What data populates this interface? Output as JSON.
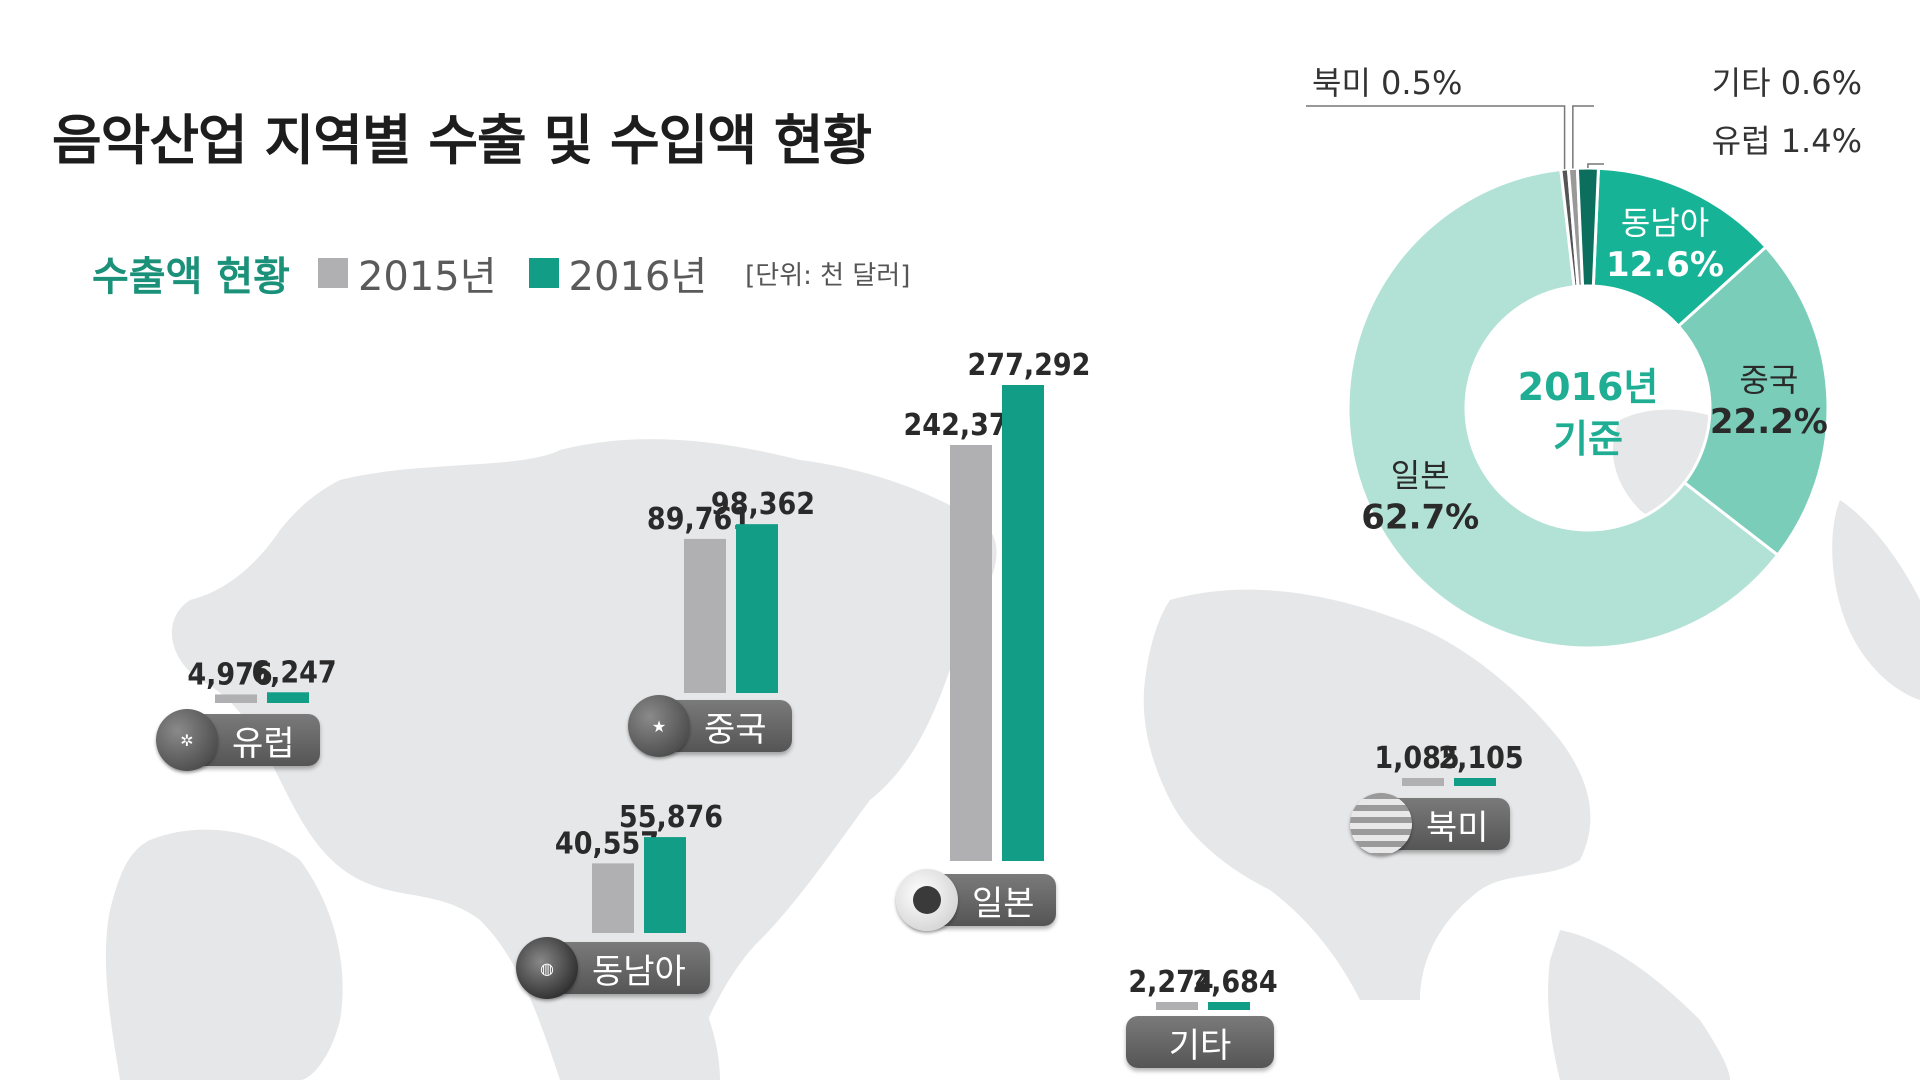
{
  "title": "음악산업 지역별 수출 및 수입액 현황",
  "legend": {
    "heading": "수출액 현황",
    "series": [
      {
        "label": "2015년",
        "color": "#b0b0b2"
      },
      {
        "label": "2016년",
        "color": "#129d86"
      }
    ],
    "unit": "[단위: 천 달러]"
  },
  "regions": {
    "europe": "유럽",
    "china": "중국",
    "southeast_asia": "동남아",
    "japan": "일본",
    "north_america": "북미",
    "other": "기타"
  },
  "chart_data": [
    {
      "type": "bar",
      "title": "수출액 현황",
      "unit": "[단위: 천 달러]",
      "categories": [
        "유럽",
        "중국",
        "동남아",
        "일본",
        "북미",
        "기타"
      ],
      "series": [
        {
          "name": "2015년",
          "values": [
            4976,
            89761,
            40557,
            242370,
            1085,
            2274
          ]
        },
        {
          "name": "2016년",
          "values": [
            6247,
            98362,
            55876,
            277292,
            2105,
            2684
          ]
        }
      ],
      "value_labels": {
        "2015년": [
          "4,976",
          "89,761",
          "40,557",
          "242,370",
          "1,085",
          "2,274"
        ],
        "2016년": [
          "6,247",
          "98,362",
          "55,876",
          "277,292",
          "2,105",
          "2,684"
        ]
      },
      "colors": [
        "#b0b0b2",
        "#129d86"
      ]
    },
    {
      "type": "pie",
      "center_label": [
        "2016년",
        "기준"
      ],
      "slices": [
        {
          "name": "동남아",
          "value": 12.6,
          "label": "12.6%",
          "color": "#17b396"
        },
        {
          "name": "중국",
          "value": 22.2,
          "label": "22.2%",
          "color": "#7acdb8"
        },
        {
          "name": "일본",
          "value": 62.7,
          "label": "62.7%",
          "color": "#b2e2d6"
        },
        {
          "name": "북미",
          "value": 0.5,
          "label": "0.5%",
          "color": "#555555"
        },
        {
          "name": "기타",
          "value": 0.6,
          "label": "0.6%",
          "color": "#999999"
        },
        {
          "name": "유럽",
          "value": 1.4,
          "label": "1.4%",
          "color": "#0c6e5d"
        }
      ]
    }
  ]
}
